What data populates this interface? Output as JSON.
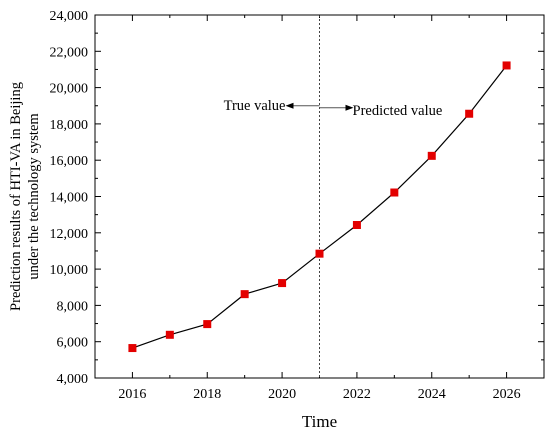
{
  "chart_data": {
    "type": "line",
    "x": [
      2016,
      2017,
      2018,
      2019,
      2020,
      2021,
      2022,
      2023,
      2024,
      2025,
      2026
    ],
    "series": [
      {
        "values": [
          5650,
          6380,
          6970,
          8620,
          9230,
          10850,
          12430,
          14220,
          16240,
          18560,
          21220
        ],
        "color": "#e30000",
        "marker": "square"
      }
    ],
    "xlabel": "Time",
    "ylabel_lines": [
      "Prediction results of HTI-VA in Beijing",
      "under the technology system"
    ],
    "xlim": [
      2015,
      2027
    ],
    "ylim": [
      4000,
      24000
    ],
    "x_ticks": [
      2016,
      2018,
      2020,
      2022,
      2024,
      2026
    ],
    "x_tick_labels": [
      "2016",
      "2018",
      "2020",
      "2022",
      "2024",
      "2026"
    ],
    "y_ticks": [
      4000,
      6000,
      8000,
      10000,
      12000,
      14000,
      16000,
      18000,
      20000,
      22000,
      24000
    ],
    "y_tick_labels": [
      "4,000",
      "6,000",
      "8,000",
      "10,000",
      "12,000",
      "14,000",
      "16,000",
      "18,000",
      "20,000",
      "22,000",
      "24,000"
    ],
    "divider_x": 2021,
    "divider_style": "dotted",
    "annotations": {
      "true_label": "True value",
      "predicted_label": "Predicted value"
    },
    "grid": false,
    "legend": "none"
  }
}
